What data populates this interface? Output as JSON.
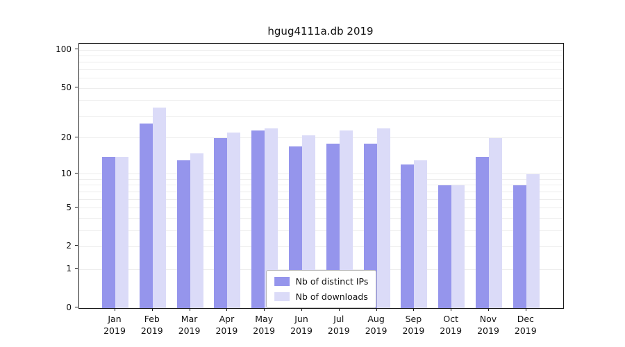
{
  "title": "hgug4111a.db 2019",
  "chart_data": {
    "type": "bar",
    "title": "hgug4111a.db 2019",
    "categories": [
      "Jan",
      "Feb",
      "Mar",
      "Apr",
      "May",
      "Jun",
      "Jul",
      "Aug",
      "Sep",
      "Oct",
      "Nov",
      "Dec"
    ],
    "x_sublabel": "2019",
    "series": [
      {
        "name": "Nb of distinct IPs",
        "color": "#9595ec",
        "values": [
          14,
          26,
          13,
          20,
          23,
          17,
          18,
          18,
          12,
          8,
          14,
          8
        ]
      },
      {
        "name": "Nb of downloads",
        "color": "#dbdbf8",
        "values": [
          14,
          35,
          15,
          22,
          24,
          21,
          23,
          24,
          13,
          8,
          20,
          10
        ]
      }
    ],
    "yscale": "log1p",
    "ylim": [
      0,
      112
    ],
    "yticks": [
      0,
      1,
      2,
      5,
      10,
      20,
      50,
      100
    ],
    "gridlines": [
      1,
      2,
      3,
      4,
      5,
      6,
      7,
      8,
      9,
      10,
      20,
      30,
      40,
      50,
      60,
      70,
      80,
      90,
      100
    ],
    "grid_color": "#ededed",
    "legend_position": "inside-bottom-center",
    "grid": true
  }
}
